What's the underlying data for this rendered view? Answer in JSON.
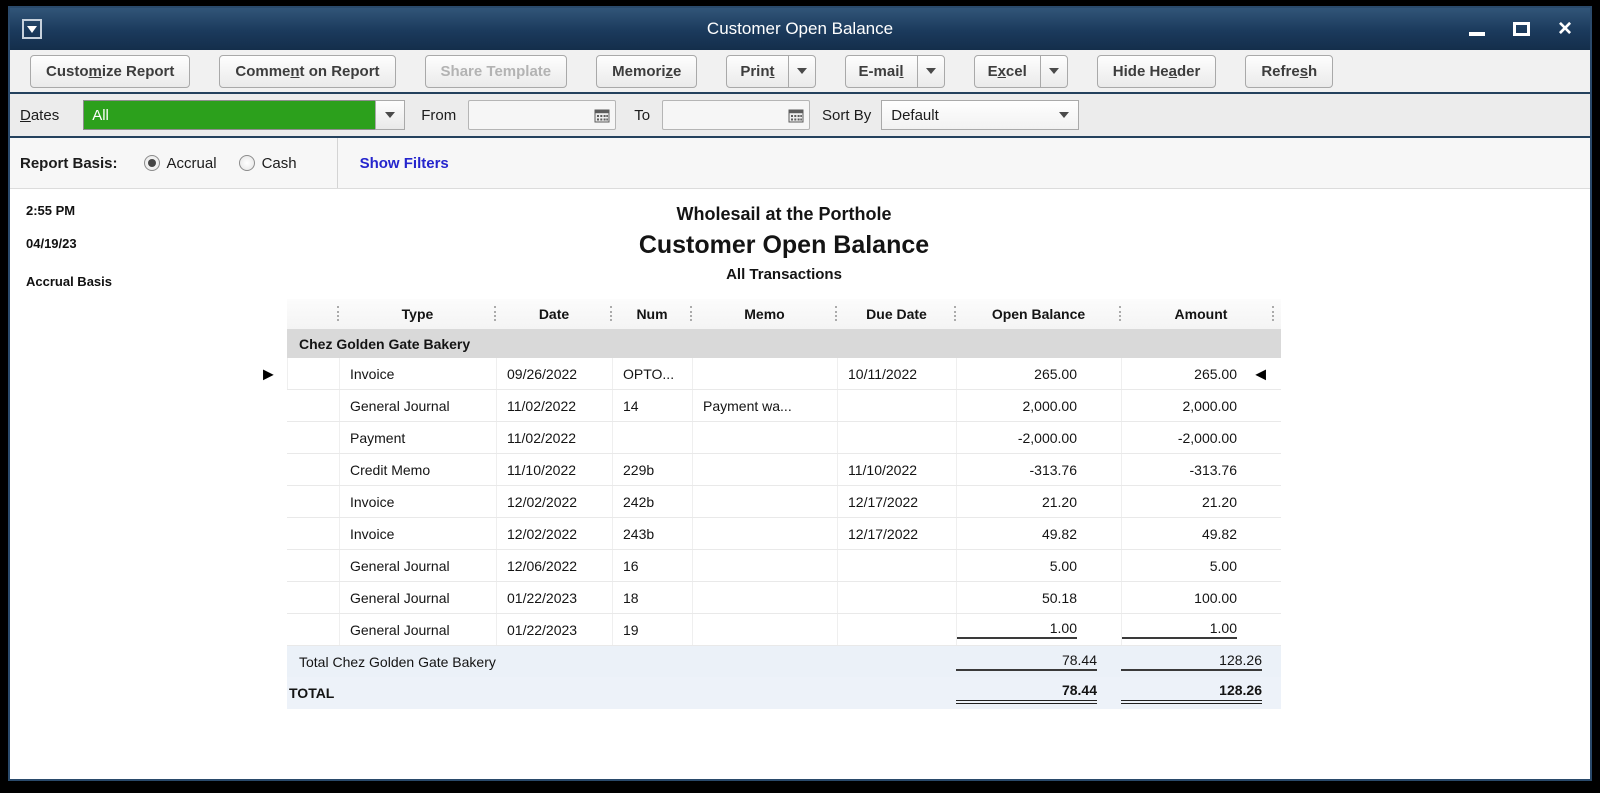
{
  "window": {
    "title": "Customer Open Balance",
    "close_glyph": "×"
  },
  "toolbar": {
    "buttons": [
      {
        "text": "Customize Report",
        "u": 5
      },
      {
        "text": "Comment on Report",
        "u": 5
      },
      {
        "text": "Share Template",
        "u": -1,
        "disabled": true
      },
      {
        "text": "Memorize",
        "u": 6
      },
      {
        "text": "Print",
        "u": 4,
        "split": true
      },
      {
        "text": "E-mail",
        "u": 5,
        "split": true
      },
      {
        "text": "Excel",
        "u": 1,
        "split": true
      },
      {
        "text": "Hide Header",
        "u": 7
      },
      {
        "text": "Refresh",
        "u": 5
      }
    ]
  },
  "filters": {
    "dates_label": {
      "text": "Dates",
      "u": 0
    },
    "dates_value": "All",
    "from_label": "From",
    "from_value": "",
    "to_label": "To",
    "to_value": "",
    "sort_by_label": "Sort By",
    "sort_by_value": "Default"
  },
  "report_basis": {
    "label": "Report Basis:",
    "accrual": "Accrual",
    "cash": "Cash",
    "selected": "Accrual",
    "show_filters": "Show Filters"
  },
  "report": {
    "time": "2:55 PM",
    "date": "04/19/23",
    "basis": "Accrual Basis",
    "company": "Wholesail at the Porthole",
    "title": "Customer Open Balance",
    "subtitle": "All Transactions",
    "columns": [
      "Type",
      "Date",
      "Num",
      "Memo",
      "Due Date",
      "Open Balance",
      "Amount"
    ],
    "group": "Chez Golden Gate Bakery",
    "rows": [
      {
        "type": "Invoice",
        "date": "09/26/2022",
        "num": "OPTO...",
        "memo": "",
        "due_date": "10/11/2022",
        "open_balance": "265.00",
        "amount": "265.00"
      },
      {
        "type": "General Journal",
        "date": "11/02/2022",
        "num": "14",
        "memo": "Payment wa...",
        "due_date": "",
        "open_balance": "2,000.00",
        "amount": "2,000.00"
      },
      {
        "type": "Payment",
        "date": "11/02/2022",
        "num": "",
        "memo": "",
        "due_date": "",
        "open_balance": "-2,000.00",
        "amount": "-2,000.00"
      },
      {
        "type": "Credit Memo",
        "date": "11/10/2022",
        "num": "229b",
        "memo": "",
        "due_date": "11/10/2022",
        "open_balance": "-313.76",
        "amount": "-313.76"
      },
      {
        "type": "Invoice",
        "date": "12/02/2022",
        "num": "242b",
        "memo": "",
        "due_date": "12/17/2022",
        "open_balance": "21.20",
        "amount": "21.20"
      },
      {
        "type": "Invoice",
        "date": "12/02/2022",
        "num": "243b",
        "memo": "",
        "due_date": "12/17/2022",
        "open_balance": "49.82",
        "amount": "49.82"
      },
      {
        "type": "General Journal",
        "date": "12/06/2022",
        "num": "16",
        "memo": "",
        "due_date": "",
        "open_balance": "5.00",
        "amount": "5.00"
      },
      {
        "type": "General Journal",
        "date": "01/22/2023",
        "num": "18",
        "memo": "",
        "due_date": "",
        "open_balance": "50.18",
        "amount": "100.00"
      },
      {
        "type": "General Journal",
        "date": "01/22/2023",
        "num": "19",
        "memo": "",
        "due_date": "",
        "open_balance": "1.00",
        "amount": "1.00"
      }
    ],
    "group_total": {
      "label": "Total Chez Golden Gate Bakery",
      "open_balance": "78.44",
      "amount": "128.26"
    },
    "grand_total": {
      "label": "TOTAL",
      "open_balance": "78.44",
      "amount": "128.26"
    },
    "markers": {
      "left": "▶",
      "right": "◀"
    }
  },
  "colors": {
    "accent_green": "#2ca01c",
    "titlebar_navy": "#1b3a5c",
    "link_blue": "#2525cd",
    "group_header_bg": "#d9d9d9",
    "total_row_bg": "#ebf1f8"
  }
}
